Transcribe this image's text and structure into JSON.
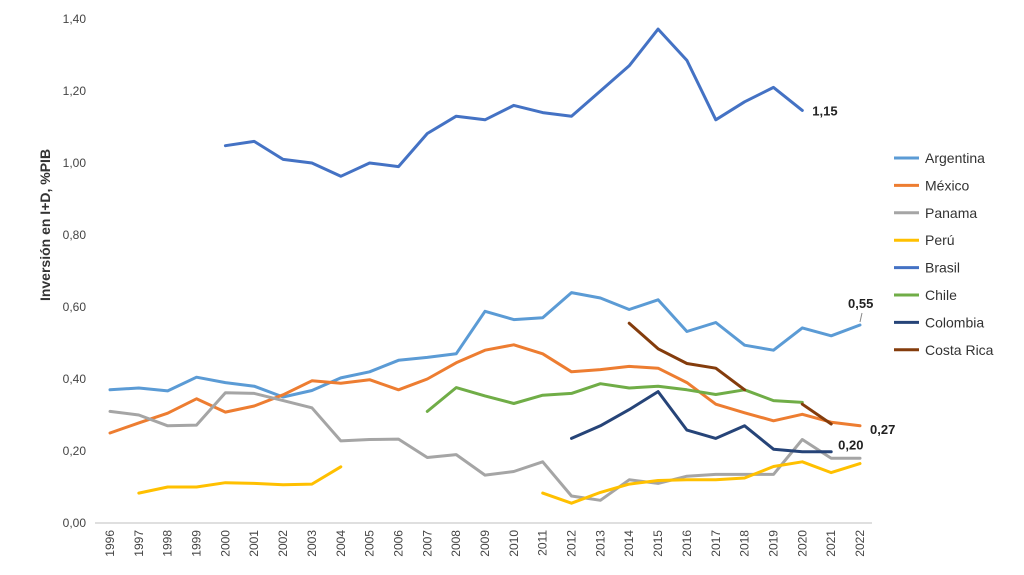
{
  "chart_data": {
    "type": "line",
    "title": "",
    "xlabel": "",
    "ylabel": "Inversión en I+D, %PIB",
    "x": [
      "1996",
      "1997",
      "1998",
      "1999",
      "2000",
      "2001",
      "2002",
      "2003",
      "2004",
      "2005",
      "2006",
      "2007",
      "2008",
      "2009",
      "2010",
      "2011",
      "2012",
      "2013",
      "2014",
      "2015",
      "2016",
      "2017",
      "2018",
      "2019",
      "2020",
      "2021",
      "2022"
    ],
    "ylim": [
      0,
      1.4
    ],
    "yticks": [
      "0,00",
      "0,20",
      "0,40",
      "0,60",
      "0,80",
      "1,00",
      "1,20",
      "1,40"
    ],
    "grid": false,
    "legend_position": "right",
    "series": [
      {
        "name": "Argentina",
        "color": "#5B9BD5",
        "values": [
          0.37,
          0.375,
          0.367,
          0.405,
          0.39,
          0.38,
          0.35,
          0.368,
          0.403,
          0.42,
          0.452,
          0.46,
          0.47,
          0.588,
          0.565,
          0.57,
          0.64,
          0.625,
          0.593,
          0.62,
          0.532,
          0.557,
          0.494,
          0.48,
          0.542,
          0.52,
          0.55
        ]
      },
      {
        "name": "México",
        "color": "#ED7D31",
        "values": [
          0.25,
          0.278,
          0.305,
          0.345,
          0.308,
          0.325,
          0.356,
          0.395,
          0.388,
          0.398,
          0.37,
          0.4,
          0.445,
          0.48,
          0.495,
          0.47,
          0.42,
          0.426,
          0.435,
          0.43,
          0.39,
          0.33,
          0.306,
          0.284,
          0.302,
          0.28,
          0.27
        ]
      },
      {
        "name": "Panama",
        "color": "#A5A5A5",
        "values": [
          0.31,
          0.3,
          0.27,
          0.272,
          0.362,
          0.36,
          0.34,
          0.32,
          0.228,
          0.232,
          0.233,
          0.182,
          0.19,
          0.133,
          0.143,
          0.17,
          0.075,
          0.063,
          0.12,
          0.11,
          0.13,
          0.135,
          0.135,
          0.135,
          0.232,
          0.18,
          0.18
        ]
      },
      {
        "name": "Perú",
        "color": "#FFC000",
        "values": [
          null,
          0.083,
          0.1,
          0.1,
          0.112,
          0.11,
          0.106,
          0.108,
          0.156,
          null,
          null,
          null,
          null,
          null,
          null,
          0.083,
          0.055,
          0.085,
          0.108,
          0.118,
          0.12,
          0.12,
          0.125,
          0.157,
          0.17,
          0.14,
          0.165
        ]
      },
      {
        "name": "Brasil",
        "color": "#4472C4",
        "values": [
          null,
          null,
          null,
          null,
          1.048,
          1.06,
          1.01,
          1.0,
          0.963,
          1.0,
          0.99,
          1.082,
          1.13,
          1.12,
          1.16,
          1.14,
          1.13,
          1.2,
          1.27,
          1.372,
          1.285,
          1.12,
          1.17,
          1.21,
          1.146,
          null,
          null
        ]
      },
      {
        "name": "Chile",
        "color": "#70AD47",
        "values": [
          null,
          null,
          null,
          null,
          null,
          null,
          null,
          null,
          null,
          null,
          null,
          0.31,
          0.376,
          0.353,
          0.332,
          0.355,
          0.36,
          0.387,
          0.375,
          0.38,
          0.37,
          0.357,
          0.37,
          0.34,
          0.335,
          null,
          null
        ]
      },
      {
        "name": "Colombia",
        "color": "#264478",
        "values": [
          null,
          null,
          null,
          null,
          null,
          null,
          null,
          null,
          null,
          null,
          null,
          null,
          null,
          null,
          null,
          null,
          0.235,
          0.27,
          0.315,
          0.365,
          0.258,
          0.235,
          0.27,
          0.205,
          0.198,
          0.198,
          null
        ]
      },
      {
        "name": "Costa Rica",
        "color": "#843C0C",
        "values": [
          null,
          null,
          null,
          null,
          null,
          null,
          null,
          null,
          null,
          null,
          null,
          null,
          null,
          null,
          null,
          null,
          null,
          null,
          0.555,
          0.484,
          0.443,
          0.43,
          0.37,
          null,
          0.33,
          0.275,
          null
        ]
      }
    ],
    "annotations": [
      {
        "text": "1,15",
        "series": "Brasil",
        "x": "2020",
        "y": 1.146
      },
      {
        "text": "0,55",
        "series": "Argentina",
        "x": "2022",
        "y": 0.55
      },
      {
        "text": "0,27",
        "series": "México",
        "x": "2022",
        "y": 0.27
      },
      {
        "text": "0,20",
        "series": "Colombia",
        "x": "2021",
        "y": 0.198
      }
    ]
  }
}
